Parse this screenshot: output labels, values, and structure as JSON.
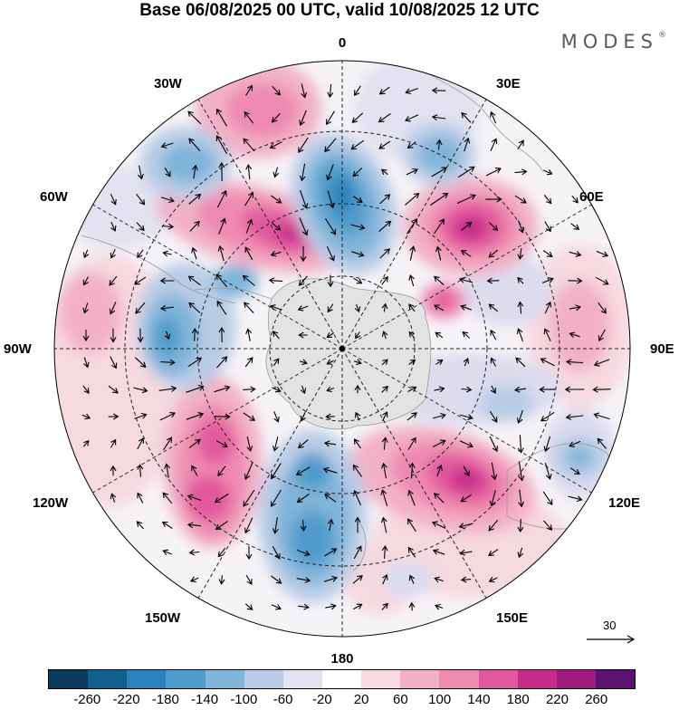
{
  "title": "Base 06/08/2025 00 UTC, valid 10/08/2025 12 UTC",
  "brand": {
    "name": "MODES",
    "mark": "®"
  },
  "longitude_labels": {
    "lon_0": "0",
    "lon_30E": "30E",
    "lon_60E": "60E",
    "lon_90E": "90E",
    "lon_120E": "120E",
    "lon_150E": "150E",
    "lon_180": "180",
    "lon_150W": "150W",
    "lon_120W": "120W",
    "lon_90W": "90W",
    "lon_60W": "60W",
    "lon_30W": "30W"
  },
  "wind_scale": {
    "label": "30"
  },
  "colorbar": {
    "colors": [
      "#0b3a5b",
      "#115f8e",
      "#2a81bb",
      "#4f9bcb",
      "#80b4d9",
      "#b8cce6",
      "#e2e2f0",
      "#ffffff",
      "#f7d9e0",
      "#f2b1c6",
      "#ee8ab0",
      "#e1599c",
      "#c82a89",
      "#9e1a7f",
      "#5c126f"
    ],
    "ticks": [
      "-260",
      "-220",
      "-180",
      "-140",
      "-100",
      "-60",
      "-20",
      "20",
      "60",
      "100",
      "140",
      "180",
      "220",
      "260"
    ]
  }
}
